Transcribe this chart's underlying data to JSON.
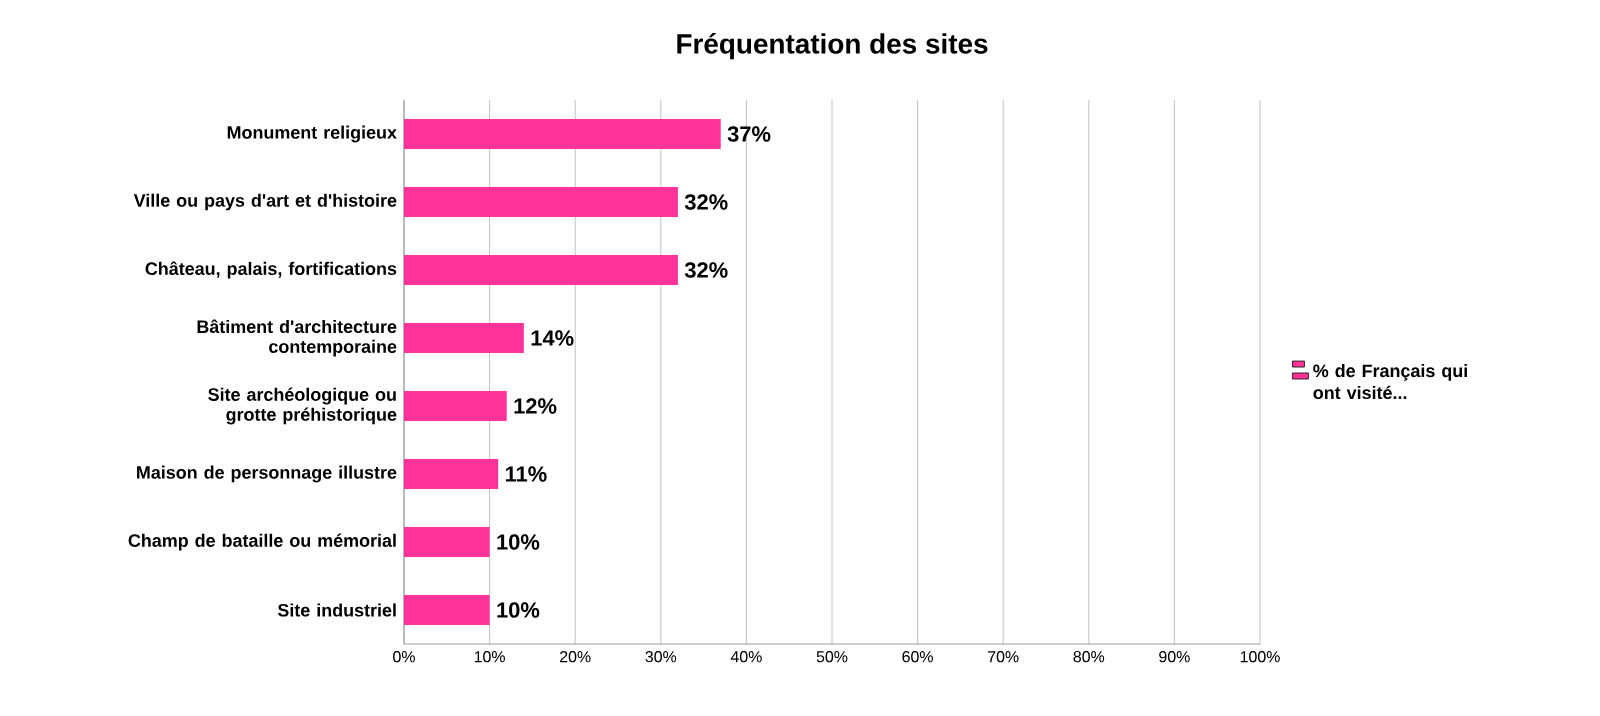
{
  "chart_data": {
    "type": "bar",
    "orientation": "horizontal",
    "title": "Fréquentation des sites",
    "categories": [
      "Monument religieux",
      "Ville ou pays d'art et d'histoire",
      "Château, palais, fortifications",
      "Bâtiment d'architecture contemporaine",
      "Site archéologique ou grotte préhistorique",
      "Maison de personnage illustre",
      "Champ de bataille ou mémorial",
      "Site industriel"
    ],
    "series": [
      {
        "name": "% de Français qui ont visité...",
        "color": "#ff3399",
        "values": [
          37,
          32,
          32,
          14,
          12,
          11,
          10,
          10
        ],
        "value_labels": [
          "37%",
          "32%",
          "32%",
          "14%",
          "12%",
          "11%",
          "10%",
          "10%"
        ]
      }
    ],
    "xlim": [
      0,
      100
    ],
    "xticks": [
      {
        "value": 0,
        "label": "0%"
      },
      {
        "value": 10,
        "label": "10%"
      },
      {
        "value": 20,
        "label": "20%"
      },
      {
        "value": 30,
        "label": "30%"
      },
      {
        "value": 40,
        "label": "40%"
      },
      {
        "value": 50,
        "label": "50%"
      },
      {
        "value": 60,
        "label": "60%"
      },
      {
        "value": 70,
        "label": "70%"
      },
      {
        "value": 80,
        "label": "80%"
      },
      {
        "value": 90,
        "label": "90%"
      },
      {
        "value": 100,
        "label": "100%"
      }
    ],
    "grid": "x",
    "legend": "right"
  }
}
